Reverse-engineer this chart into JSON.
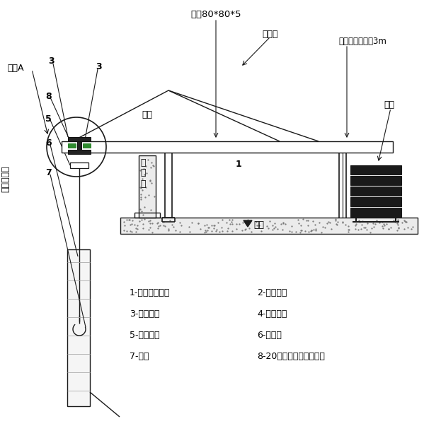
{
  "bg": "white",
  "lc": "#1a1a1a",
  "green": "#2e8b2e",
  "dark": "#222222",
  "texts": {
    "title_top": "方锈80*80*5",
    "steel_rope": "钓丝绳",
    "hanger": "吸栏间距不大于3m",
    "counterweight": "配重",
    "node_a": "节点A",
    "weld": "焺接",
    "parapet_1": "女",
    "parapet_2": "児",
    "parapet_3": "墙",
    "roof": "屋面",
    "wall": "单元幕墙墙",
    "num_1": "1",
    "num_3a": "3",
    "num_3b": "3",
    "num_5": "5",
    "num_6": "6",
    "num_7": "7",
    "num_8": "8"
  },
  "legend": [
    [
      "1-吸蓝支架装置",
      "2-凹形钓板"
    ],
    [
      "3-高强螺栖",
      "4-矩形钓板"
    ],
    [
      "5-电动葫芦",
      "6-钓丝绳"
    ],
    [
      "7-吸钉",
      "8-20号工字钓环及道轨人"
    ]
  ],
  "figsize": [
    6.23,
    6.03
  ],
  "dpi": 100
}
